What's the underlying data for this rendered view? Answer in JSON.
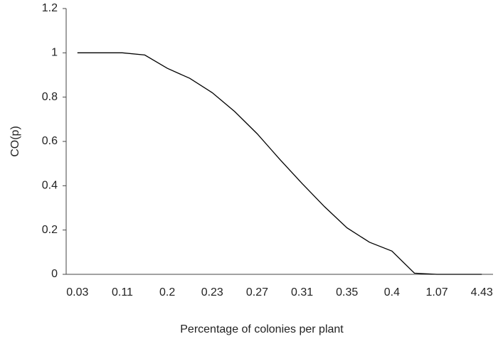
{
  "chart_data": {
    "type": "line",
    "x_label": "Percentage of colonies per plant",
    "y_label": "CO(p)",
    "categories": [
      "0.03",
      null,
      "0.11",
      null,
      "0.2",
      null,
      "0.23",
      null,
      "0.27",
      null,
      "0.31",
      null,
      "0.35",
      null,
      "0.4",
      null,
      "1.07",
      null,
      "4.43"
    ],
    "values": [
      1.0,
      1.0,
      1.0,
      0.99,
      0.93,
      0.885,
      0.82,
      0.735,
      0.635,
      0.52,
      0.41,
      0.305,
      0.21,
      0.145,
      0.105,
      0.005,
      0,
      0,
      0
    ],
    "color": "#000000",
    "ylim": [
      0,
      1.2
    ],
    "yticks": [
      0,
      0.2,
      0.4,
      0.6,
      0.8,
      1,
      1.2
    ],
    "grid": false
  }
}
